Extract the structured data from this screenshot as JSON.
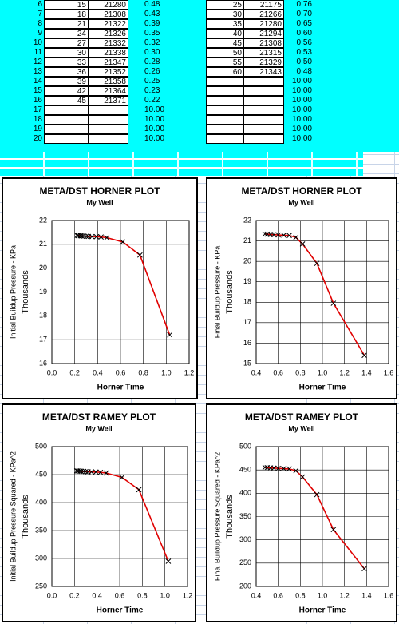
{
  "table": {
    "left": {
      "rows": [
        [
          "6",
          "15",
          "21280",
          "0.48"
        ],
        [
          "7",
          "18",
          "21308",
          "0.43"
        ],
        [
          "8",
          "21",
          "21322",
          "0.39"
        ],
        [
          "9",
          "24",
          "21326",
          "0.35"
        ],
        [
          "10",
          "27",
          "21332",
          "0.32"
        ],
        [
          "11",
          "30",
          "21338",
          "0.30"
        ],
        [
          "12",
          "33",
          "21347",
          "0.28"
        ],
        [
          "13",
          "36",
          "21352",
          "0.26"
        ],
        [
          "14",
          "39",
          "21358",
          "0.25"
        ],
        [
          "15",
          "42",
          "21364",
          "0.23"
        ],
        [
          "16",
          "45",
          "21371",
          "0.22"
        ],
        [
          "17",
          null,
          null,
          "10.00"
        ],
        [
          "18",
          null,
          null,
          "10.00"
        ],
        [
          "19",
          null,
          null,
          "10.00"
        ],
        [
          "20",
          null,
          null,
          "10.00"
        ]
      ]
    },
    "right": {
      "rows": [
        [
          "25",
          "21175",
          "0.76"
        ],
        [
          "30",
          "21266",
          "0.70"
        ],
        [
          "35",
          "21280",
          "0.65"
        ],
        [
          "40",
          "21294",
          "0.60"
        ],
        [
          "45",
          "21308",
          "0.56"
        ],
        [
          "50",
          "21315",
          "0.53"
        ],
        [
          "55",
          "21329",
          "0.50"
        ],
        [
          "60",
          "21343",
          "0.48"
        ],
        [
          null,
          null,
          "10.00"
        ],
        [
          null,
          null,
          "10.00"
        ],
        [
          null,
          null,
          "10.00"
        ],
        [
          null,
          null,
          "10.00"
        ],
        [
          null,
          null,
          "10.00"
        ],
        [
          null,
          null,
          "10.00"
        ],
        [
          null,
          null,
          "10.00"
        ]
      ]
    }
  },
  "chart_data": [
    {
      "type": "scatter",
      "title": "META/DST HORNER PLOT",
      "subtitle": "My Well",
      "y_label": "Initial Buildup Pressure - KPa",
      "y_unit_label": "Thousands",
      "x_label": "Horner Time",
      "x": [
        0.22,
        0.23,
        0.25,
        0.26,
        0.28,
        0.3,
        0.32,
        0.35,
        0.39,
        0.43,
        0.48,
        0.62,
        0.77,
        1.03
      ],
      "values": [
        21.371,
        21.364,
        21.358,
        21.352,
        21.347,
        21.338,
        21.332,
        21.326,
        21.322,
        21.308,
        21.28,
        21.1,
        20.55,
        17.2
      ],
      "line_color": "#e00000",
      "marker_color": "#000000",
      "grid": true,
      "xlim": [
        0,
        1.2
      ],
      "xticks": [
        {
          "value": 0,
          "label": "0.0"
        },
        0.2,
        0.4,
        0.6,
        0.8,
        {
          "value": 1,
          "label": "1.0"
        },
        1.2
      ],
      "ylim": [
        16,
        22
      ],
      "yticks": [
        16,
        17,
        18,
        19,
        20,
        21,
        22
      ]
    },
    {
      "type": "scatter",
      "title": "META/DST HORNER PLOT",
      "subtitle": "My Well",
      "y_label": "Final Buildup Pressure - KPa",
      "y_unit_label": "Thousands",
      "x_label": "Horner Time",
      "x": [
        0.48,
        0.5,
        0.53,
        0.56,
        0.6,
        0.65,
        0.7,
        0.76,
        0.82,
        0.95,
        1.1,
        1.38
      ],
      "values": [
        21.343,
        21.329,
        21.315,
        21.308,
        21.294,
        21.28,
        21.266,
        21.175,
        20.85,
        19.9,
        17.95,
        15.4
      ],
      "line_color": "#e00000",
      "marker_color": "#000000",
      "grid": true,
      "xlim": [
        0.4,
        1.6
      ],
      "xticks": [
        0.4,
        0.6,
        0.8,
        {
          "value": 1,
          "label": "1.0"
        },
        1.2,
        1.4,
        1.6
      ],
      "ylim": [
        15,
        22
      ],
      "yticks": [
        15,
        16,
        17,
        18,
        19,
        20,
        21,
        22
      ]
    },
    {
      "type": "scatter",
      "title": "META/DST RAMEY PLOT",
      "subtitle": "My Well",
      "y_label": "Initial Buildup Pressure Squared - KPa^2",
      "y_unit_label": "Thousands",
      "x_label": "Horner Time",
      "x": [
        0.22,
        0.23,
        0.25,
        0.26,
        0.28,
        0.3,
        0.32,
        0.35,
        0.39,
        0.43,
        0.48,
        0.62,
        0.77,
        1.03
      ],
      "values": [
        456.7,
        456.4,
        456.2,
        455.9,
        455.7,
        455.3,
        455.0,
        454.8,
        454.6,
        454.0,
        452.8,
        445,
        423,
        295
      ],
      "line_color": "#e00000",
      "marker_color": "#000000",
      "grid": true,
      "xlim": [
        0,
        1.2
      ],
      "xticks": [
        {
          "value": 0,
          "label": "0.0"
        },
        0.2,
        0.4,
        0.6,
        0.8,
        {
          "value": 1,
          "label": "1.0"
        },
        1.2
      ],
      "ylim": [
        250,
        500
      ],
      "yticks": [
        250,
        300,
        350,
        400,
        450,
        500
      ]
    },
    {
      "type": "scatter",
      "title": "META/DST RAMEY PLOT",
      "subtitle": "My Well",
      "y_label": "Final Buildup Pressure Squared - KPa^2",
      "y_unit_label": "Thousands",
      "x_label": "Horner Time",
      "x": [
        0.48,
        0.5,
        0.53,
        0.56,
        0.6,
        0.65,
        0.7,
        0.76,
        0.82,
        0.95,
        1.1,
        1.38
      ],
      "values": [
        455.5,
        454.9,
        454.3,
        454.0,
        453.4,
        452.8,
        452.2,
        448.4,
        435,
        397,
        322,
        238
      ],
      "line_color": "#e00000",
      "marker_color": "#000000",
      "grid": true,
      "xlim": [
        0.4,
        1.6
      ],
      "xticks": [
        0.4,
        0.6,
        0.8,
        {
          "value": 1,
          "label": "1.0"
        },
        1.2,
        1.4,
        1.6
      ],
      "ylim": [
        200,
        500
      ],
      "yticks": [
        200,
        250,
        300,
        350,
        400,
        450,
        500
      ]
    }
  ]
}
